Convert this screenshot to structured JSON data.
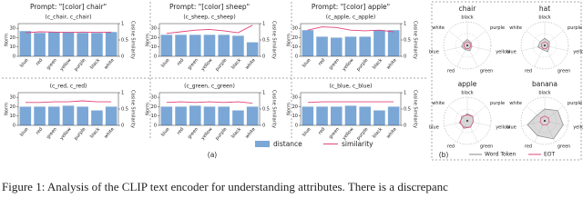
{
  "panel_labels": [
    "(a)",
    "(b)"
  ],
  "caption": "Figure 1: Analysis of the CLIP text encoder for understanding attributes. There is a discrepanc",
  "chart_data": [
    {
      "type": "bar",
      "title": "Prompt: \"[color] chair\"",
      "subtitle": "(c_chair, c_chair)",
      "ylabel": "Norm",
      "y2label": "Cosine Similarity",
      "categories": [
        "blue",
        "red",
        "green",
        "yellow",
        "purple",
        "black",
        "white"
      ],
      "ylim": [
        0,
        35
      ],
      "yticks": [
        0,
        10,
        20,
        30
      ],
      "y2lim": [
        0,
        1
      ],
      "y2ticks": [
        0,
        0.5,
        1
      ],
      "series": [
        {
          "name": "distance",
          "kind": "bar",
          "color": "#7ba7d6",
          "values": [
            27,
            25,
            26,
            26,
            25,
            25,
            26
          ]
        },
        {
          "name": "similarity",
          "kind": "line",
          "axis": "y2",
          "color": "#e0457b",
          "values": [
            0.72,
            0.75,
            0.74,
            0.73,
            0.74,
            0.73,
            0.74
          ]
        }
      ]
    },
    {
      "type": "bar",
      "title": "Prompt: \"[color] sheep\"",
      "subtitle": "(c_sheep, c_sheep)",
      "ylabel": "Norm",
      "y2label": "Cosine Similarity",
      "categories": [
        "blue",
        "red",
        "green",
        "yellow",
        "purple",
        "black",
        "white"
      ],
      "ylim": [
        0,
        35
      ],
      "yticks": [
        0,
        10,
        20,
        30
      ],
      "y2lim": [
        0,
        1
      ],
      "y2ticks": [
        0,
        0.5,
        1
      ],
      "series": [
        {
          "name": "distance",
          "kind": "bar",
          "color": "#7ba7d6",
          "values": [
            23,
            23,
            23,
            23,
            23,
            22,
            15
          ]
        },
        {
          "name": "similarity",
          "kind": "line",
          "axis": "y2",
          "color": "#e0457b",
          "values": [
            0.7,
            0.75,
            0.8,
            0.82,
            0.78,
            0.72,
            0.95
          ]
        }
      ]
    },
    {
      "type": "bar",
      "title": "Prompt: \"[color] apple\"",
      "subtitle": "(c_apple, c_apple)",
      "ylabel": "Norm",
      "y2label": "Cosine Similarity",
      "categories": [
        "blue",
        "red",
        "green",
        "yellow",
        "purple",
        "black",
        "white"
      ],
      "ylim": [
        0,
        35
      ],
      "yticks": [
        0,
        10,
        20,
        30
      ],
      "y2lim": [
        0,
        1
      ],
      "y2ticks": [
        0,
        0.5,
        1
      ],
      "series": [
        {
          "name": "distance",
          "kind": "bar",
          "color": "#7ba7d6",
          "values": [
            28,
            21,
            20,
            21,
            21,
            28,
            28
          ]
        },
        {
          "name": "similarity",
          "kind": "line",
          "axis": "y2",
          "color": "#e0457b",
          "values": [
            0.8,
            0.9,
            0.88,
            0.8,
            0.78,
            0.8,
            0.75
          ]
        }
      ]
    },
    {
      "type": "bar",
      "subtitle": "(c_red, c_red)",
      "ylabel": "Norm",
      "y2label": "Cosine Similarity",
      "categories": [
        "blue",
        "red",
        "green",
        "yellow",
        "purple",
        "black",
        "white"
      ],
      "ylim": [
        0,
        35
      ],
      "yticks": [
        0,
        10,
        20,
        30
      ],
      "y2lim": [
        0,
        1
      ],
      "y2ticks": [
        0,
        0.5,
        1
      ],
      "series": [
        {
          "name": "distance",
          "kind": "bar",
          "color": "#7ba7d6",
          "values": [
            20,
            20,
            20,
            21,
            20,
            16,
            20
          ]
        },
        {
          "name": "similarity",
          "kind": "line",
          "axis": "y2",
          "color": "#e0457b",
          "values": [
            0.7,
            0.7,
            0.72,
            0.72,
            0.75,
            0.72,
            0.72
          ]
        }
      ]
    },
    {
      "type": "bar",
      "subtitle": "(c_green, c_green)",
      "ylabel": "Norm",
      "y2label": "Cosine Similarity",
      "categories": [
        "blue",
        "red",
        "green",
        "yellow",
        "purple",
        "black",
        "white"
      ],
      "ylim": [
        0,
        35
      ],
      "yticks": [
        0,
        10,
        20,
        30
      ],
      "y2lim": [
        0,
        1
      ],
      "y2ticks": [
        0,
        0.5,
        1
      ],
      "series": [
        {
          "name": "distance",
          "kind": "bar",
          "color": "#7ba7d6",
          "values": [
            20,
            20,
            21,
            20,
            20,
            16,
            20
          ]
        },
        {
          "name": "similarity",
          "kind": "line",
          "axis": "y2",
          "color": "#e0457b",
          "values": [
            0.7,
            0.72,
            0.7,
            0.72,
            0.7,
            0.72,
            0.68
          ]
        }
      ]
    },
    {
      "type": "bar",
      "subtitle": "(c_blue, c_blue)",
      "ylabel": "Norm",
      "y2label": "Cosine Similarity",
      "categories": [
        "blue",
        "red",
        "green",
        "yellow",
        "purple",
        "black",
        "white"
      ],
      "ylim": [
        0,
        35
      ],
      "yticks": [
        0,
        10,
        20,
        30
      ],
      "y2lim": [
        0,
        1
      ],
      "y2ticks": [
        0,
        0.5,
        1
      ],
      "series": [
        {
          "name": "distance",
          "kind": "bar",
          "color": "#7ba7d6",
          "values": [
            20,
            20,
            20,
            21,
            20,
            16,
            20
          ]
        },
        {
          "name": "similarity",
          "kind": "line",
          "axis": "y2",
          "color": "#e0457b",
          "values": [
            0.7,
            0.72,
            0.72,
            0.72,
            0.72,
            0.72,
            0.72
          ]
        }
      ]
    },
    {
      "type": "radar",
      "title": "chair",
      "categories": [
        "black",
        "purple",
        "yellow",
        "green",
        "red",
        "blue",
        "white"
      ],
      "rlim": [
        0,
        1
      ],
      "series": [
        {
          "name": "Word Token",
          "color": "#888888",
          "values": [
            0.25,
            0.2,
            0.2,
            0.25,
            0.2,
            0.25,
            0.2
          ]
        },
        {
          "name": "EOT",
          "color": "#e0457b",
          "values": [
            0.15,
            0.15,
            0.15,
            0.15,
            0.15,
            0.15,
            0.15
          ]
        }
      ]
    },
    {
      "type": "radar",
      "title": "hat",
      "categories": [
        "black",
        "purple",
        "yellow",
        "green",
        "red",
        "blue",
        "white"
      ],
      "rlim": [
        0,
        1
      ],
      "series": [
        {
          "name": "Word Token",
          "color": "#888888",
          "values": [
            0.3,
            0.25,
            0.2,
            0.3,
            0.2,
            0.3,
            0.25
          ]
        },
        {
          "name": "EOT",
          "color": "#e0457b",
          "values": [
            0.15,
            0.15,
            0.15,
            0.15,
            0.15,
            0.15,
            0.15
          ]
        }
      ]
    },
    {
      "type": "radar",
      "title": "apple",
      "categories": [
        "black",
        "purple",
        "yellow",
        "green",
        "red",
        "blue",
        "white"
      ],
      "rlim": [
        0,
        1
      ],
      "series": [
        {
          "name": "Word Token",
          "color": "#888888",
          "values": [
            0.3,
            0.3,
            0.25,
            0.3,
            0.3,
            0.35,
            0.25
          ]
        },
        {
          "name": "EOT",
          "color": "#e0457b",
          "values": [
            0.25,
            0.3,
            0.25,
            0.3,
            0.35,
            0.3,
            0.3
          ]
        }
      ]
    },
    {
      "type": "radar",
      "title": "banana",
      "categories": [
        "black",
        "purple",
        "yellow",
        "green",
        "red",
        "blue",
        "white"
      ],
      "rlim": [
        0,
        1
      ],
      "series": [
        {
          "name": "Word Token",
          "color": "#888888",
          "values": [
            0.5,
            0.7,
            0.8,
            0.85,
            0.7,
            0.75,
            0.4
          ]
        },
        {
          "name": "EOT",
          "color": "#e0457b",
          "values": [
            0.2,
            0.2,
            0.2,
            0.2,
            0.2,
            0.2,
            0.2
          ]
        }
      ]
    }
  ]
}
